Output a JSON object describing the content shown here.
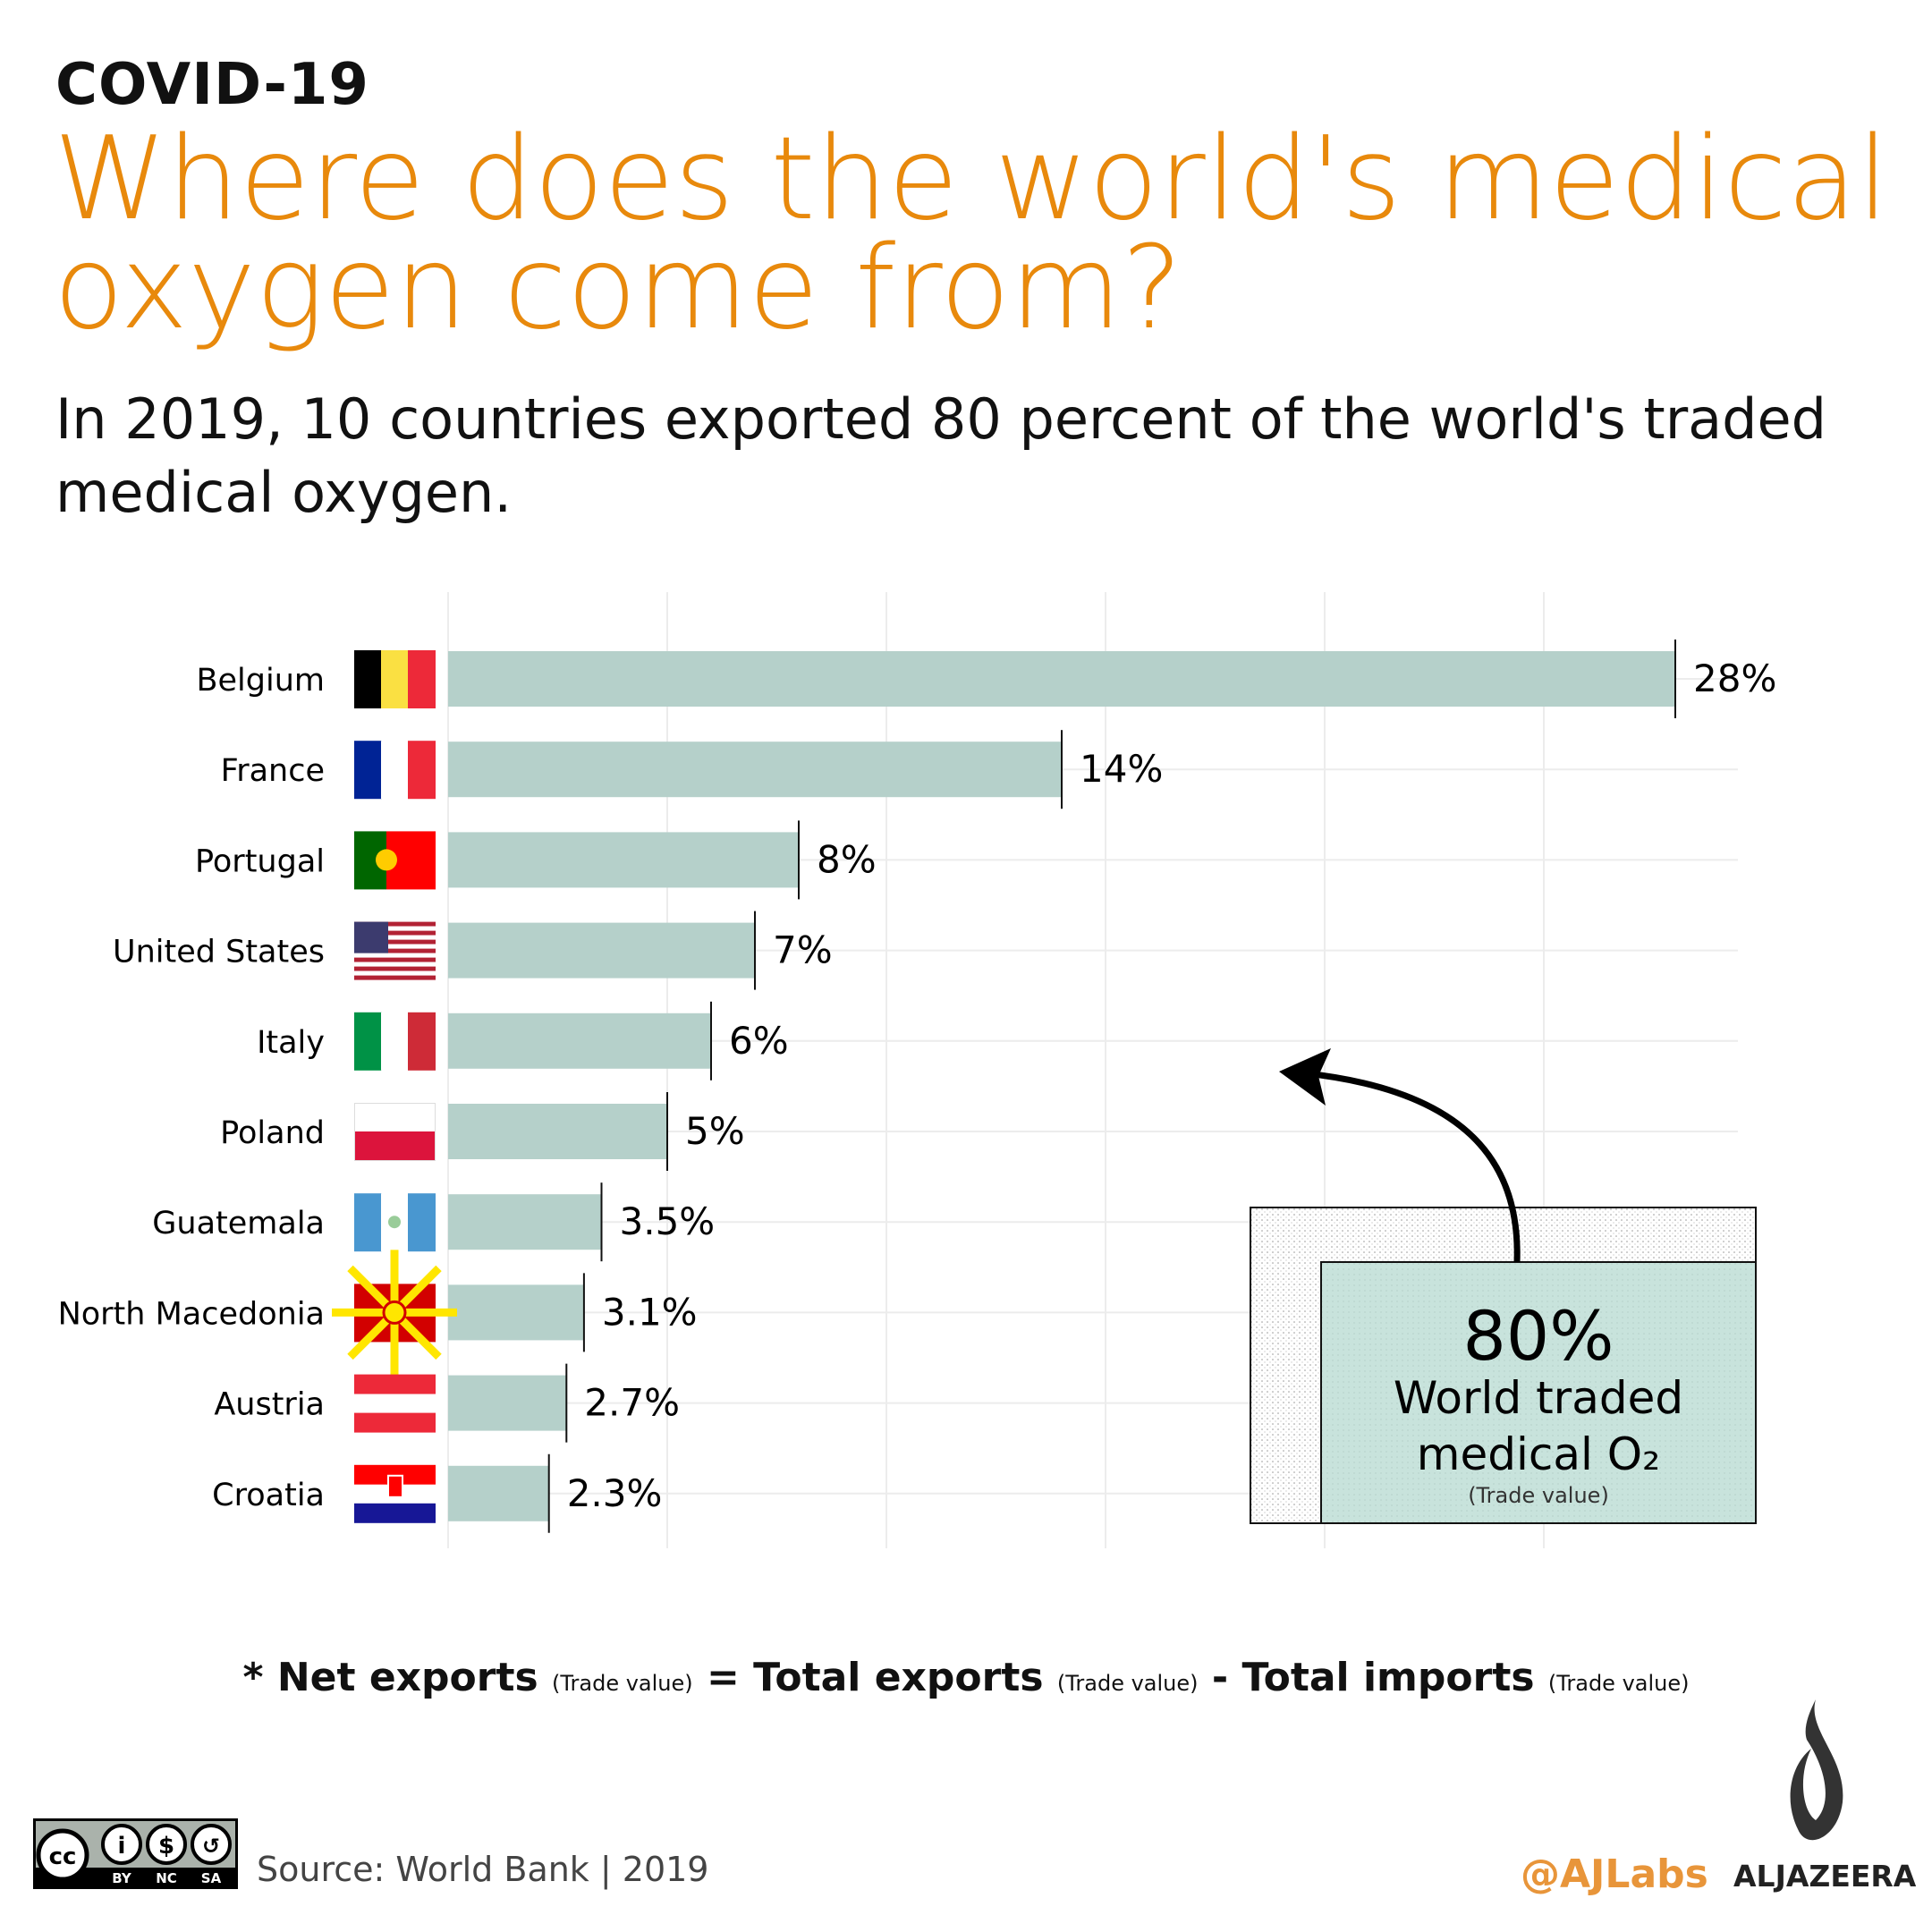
{
  "header": {
    "kicker": "COVID-19",
    "title": "Where does the world's medical oxygen come from?",
    "subtitle": "In 2019, 10 countries exported 80 percent of the world's traded medical oxygen."
  },
  "chart_data": {
    "type": "bar",
    "orientation": "horizontal",
    "categories": [
      "Belgium",
      "France",
      "Portugal",
      "United States",
      "Italy",
      "Poland",
      "Guatemala",
      "North Macedonia",
      "Austria",
      "Croatia"
    ],
    "values": [
      28,
      14,
      8,
      7,
      6,
      5,
      3.5,
      3.1,
      2.7,
      2.3
    ],
    "labels": [
      "28%",
      "14%",
      "8%",
      "7%",
      "6%",
      "5%",
      "3.5%",
      "3.1%",
      "2.7%",
      "2.3%"
    ],
    "xlim": [
      0,
      30
    ],
    "grid": true,
    "bar_color": "#b5d0ca",
    "annotation": {
      "value": "80%",
      "line1": "World traded",
      "line2": "medical O₂",
      "note": "(Trade value)"
    }
  },
  "footnote": {
    "star": "* ",
    "a": "Net exports",
    "p": "(Trade value)",
    "eq": " = ",
    "b": "Total exports",
    "minus": " - ",
    "c": "Total imports"
  },
  "footer": {
    "source": "Source: World Bank | 2019",
    "handle": "@AJLabs",
    "brand": "ALJAZEERA",
    "cc": [
      "BY",
      "NC",
      "SA"
    ]
  },
  "colors": {
    "accent": "#e8890c",
    "bar": "#b5d0ca",
    "box": "#c8e3dc"
  }
}
